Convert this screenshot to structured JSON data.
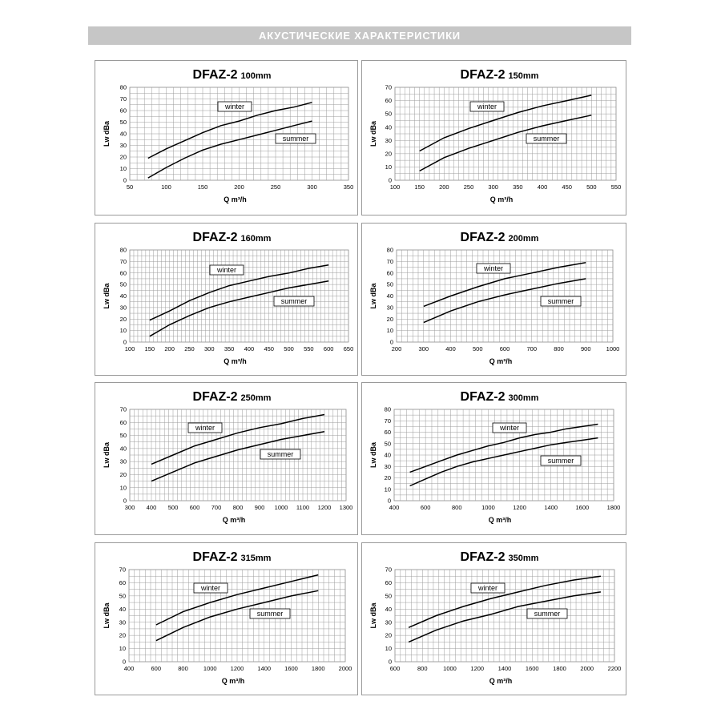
{
  "header": {
    "title": "АКУСТИЧЕСКИЕ  ХАРАКТЕРИСТИКИ"
  },
  "chart_data": [
    {
      "type": "line",
      "title": "DFAZ-2",
      "subtitle": "100mm",
      "xlabel": "Q m³/h",
      "ylabel": "Lw dBa",
      "xlim": [
        50,
        350
      ],
      "xticks": [
        50,
        100,
        150,
        200,
        250,
        300,
        350
      ],
      "ylim": [
        0,
        80
      ],
      "yticks": [
        0,
        10,
        20,
        30,
        40,
        50,
        60,
        70,
        80
      ],
      "grid": true,
      "series": [
        {
          "name": "winter",
          "x": [
            75,
            100,
            125,
            150,
            175,
            200,
            225,
            250,
            275,
            300
          ],
          "y": [
            19,
            27,
            34,
            41,
            47,
            51,
            56,
            60,
            63,
            67
          ]
        },
        {
          "name": "summer",
          "x": [
            75,
            100,
            125,
            150,
            175,
            200,
            225,
            250,
            275,
            300
          ],
          "y": [
            2,
            11,
            19,
            26,
            31,
            35,
            39,
            43,
            47,
            51
          ]
        }
      ]
    },
    {
      "type": "line",
      "title": "DFAZ-2",
      "subtitle": "150mm",
      "xlabel": "Q m³/h",
      "ylabel": "Lw dBa",
      "xlim": [
        100,
        550
      ],
      "xticks": [
        100,
        150,
        200,
        250,
        300,
        350,
        400,
        450,
        500,
        550
      ],
      "ylim": [
        0,
        70
      ],
      "yticks": [
        0,
        10,
        20,
        30,
        40,
        50,
        60,
        70
      ],
      "grid": true,
      "series": [
        {
          "name": "winter",
          "x": [
            150,
            200,
            250,
            300,
            350,
            400,
            450,
            500
          ],
          "y": [
            22,
            32,
            39,
            45,
            51,
            56,
            60,
            64
          ]
        },
        {
          "name": "summer",
          "x": [
            150,
            200,
            250,
            300,
            350,
            400,
            450,
            500
          ],
          "y": [
            7,
            17,
            24,
            30,
            36,
            41,
            45,
            49
          ]
        }
      ]
    },
    {
      "type": "line",
      "title": "DFAZ-2",
      "subtitle": "160mm",
      "xlabel": "Q m³/h",
      "ylabel": "Lw dBa",
      "xlim": [
        100,
        650
      ],
      "xticks": [
        100,
        150,
        200,
        250,
        300,
        350,
        400,
        450,
        500,
        550,
        600,
        650
      ],
      "ylim": [
        0,
        80
      ],
      "yticks": [
        0,
        10,
        20,
        30,
        40,
        50,
        60,
        70,
        80
      ],
      "grid": true,
      "series": [
        {
          "name": "winter",
          "x": [
            150,
            200,
            250,
            300,
            350,
            400,
            450,
            500,
            550,
            600
          ],
          "y": [
            19,
            27,
            36,
            43,
            49,
            53,
            57,
            60,
            64,
            67
          ]
        },
        {
          "name": "summer",
          "x": [
            150,
            200,
            250,
            300,
            350,
            400,
            450,
            500,
            550,
            600
          ],
          "y": [
            5,
            15,
            23,
            30,
            35,
            39,
            43,
            47,
            50,
            53
          ]
        }
      ]
    },
    {
      "type": "line",
      "title": "DFAZ-2",
      "subtitle": "200mm",
      "xlabel": "Q m³/h",
      "ylabel": "Lw dBa",
      "xlim": [
        200,
        1000
      ],
      "xticks": [
        200,
        300,
        400,
        500,
        600,
        700,
        800,
        900,
        1000
      ],
      "ylim": [
        0,
        80
      ],
      "yticks": [
        0,
        10,
        20,
        30,
        40,
        50,
        60,
        70,
        80
      ],
      "grid": true,
      "series": [
        {
          "name": "winter",
          "x": [
            300,
            400,
            500,
            600,
            700,
            800,
            900
          ],
          "y": [
            31,
            40,
            48,
            55,
            60,
            65,
            69
          ]
        },
        {
          "name": "summer",
          "x": [
            300,
            400,
            500,
            600,
            700,
            800,
            900
          ],
          "y": [
            17,
            27,
            35,
            41,
            46,
            51,
            55
          ]
        }
      ]
    },
    {
      "type": "line",
      "title": "DFAZ-2",
      "subtitle": "250mm",
      "xlabel": "Q m³/h",
      "ylabel": "Lw dBa",
      "xlim": [
        300,
        1300
      ],
      "xticks": [
        300,
        400,
        500,
        600,
        700,
        800,
        900,
        1000,
        1100,
        1200,
        1300
      ],
      "ylim": [
        0,
        70
      ],
      "yticks": [
        0,
        10,
        20,
        30,
        40,
        50,
        60,
        70
      ],
      "grid": true,
      "series": [
        {
          "name": "winter",
          "x": [
            400,
            500,
            600,
            700,
            800,
            900,
            1000,
            1100,
            1200
          ],
          "y": [
            28,
            35,
            42,
            47,
            52,
            56,
            59,
            63,
            66
          ]
        },
        {
          "name": "summer",
          "x": [
            400,
            500,
            600,
            700,
            800,
            900,
            1000,
            1100,
            1200
          ],
          "y": [
            15,
            22,
            29,
            34,
            39,
            43,
            47,
            50,
            53
          ]
        }
      ]
    },
    {
      "type": "line",
      "title": "DFAZ-2",
      "subtitle": "300mm",
      "xlabel": "Q m³/h",
      "ylabel": "Lw dBa",
      "xlim": [
        400,
        1800
      ],
      "xticks": [
        400,
        600,
        800,
        1000,
        1200,
        1400,
        1600,
        1800
      ],
      "ylim": [
        0,
        80
      ],
      "yticks": [
        0,
        10,
        20,
        30,
        40,
        50,
        60,
        70,
        80
      ],
      "grid": true,
      "series": [
        {
          "name": "winter",
          "x": [
            500,
            600,
            700,
            800,
            900,
            1000,
            1100,
            1200,
            1300,
            1400,
            1500,
            1600,
            1700
          ],
          "y": [
            25,
            30,
            35,
            40,
            44,
            48,
            51,
            55,
            58,
            60,
            63,
            65,
            67
          ]
        },
        {
          "name": "summer",
          "x": [
            500,
            600,
            700,
            800,
            900,
            1000,
            1100,
            1200,
            1300,
            1400,
            1500,
            1600,
            1700
          ],
          "y": [
            13,
            19,
            25,
            30,
            34,
            37,
            40,
            43,
            46,
            49,
            51,
            53,
            55
          ]
        }
      ]
    },
    {
      "type": "line",
      "title": "DFAZ-2",
      "subtitle": "315mm",
      "xlabel": "Q m³/h",
      "ylabel": "Lw dBa",
      "xlim": [
        400,
        2000
      ],
      "xticks": [
        400,
        600,
        800,
        1000,
        1200,
        1400,
        1600,
        1800,
        2000
      ],
      "ylim": [
        0,
        70
      ],
      "yticks": [
        0,
        10,
        20,
        30,
        40,
        50,
        60,
        70
      ],
      "grid": true,
      "series": [
        {
          "name": "winter",
          "x": [
            600,
            800,
            1000,
            1200,
            1400,
            1600,
            1800
          ],
          "y": [
            28,
            38,
            45,
            51,
            56,
            61,
            66
          ]
        },
        {
          "name": "summer",
          "x": [
            600,
            800,
            1000,
            1200,
            1400,
            1600,
            1800
          ],
          "y": [
            16,
            26,
            34,
            40,
            45,
            50,
            54
          ]
        }
      ]
    },
    {
      "type": "line",
      "title": "DFAZ-2",
      "subtitle": "350mm",
      "xlabel": "Q m³/h",
      "ylabel": "Lw dBa",
      "xlim": [
        600,
        2200
      ],
      "xticks": [
        600,
        800,
        1000,
        1200,
        1400,
        1600,
        1800,
        2000,
        2200
      ],
      "ylim": [
        0,
        70
      ],
      "yticks": [
        0,
        10,
        20,
        30,
        40,
        50,
        60,
        70
      ],
      "grid": true,
      "series": [
        {
          "name": "winter",
          "x": [
            700,
            900,
            1100,
            1300,
            1500,
            1700,
            1900,
            2100
          ],
          "y": [
            26,
            35,
            42,
            48,
            53,
            58,
            62,
            65
          ]
        },
        {
          "name": "summer",
          "x": [
            700,
            900,
            1100,
            1300,
            1500,
            1700,
            1900,
            2100
          ],
          "y": [
            15,
            24,
            31,
            36,
            42,
            46,
            50,
            53
          ]
        }
      ]
    }
  ]
}
